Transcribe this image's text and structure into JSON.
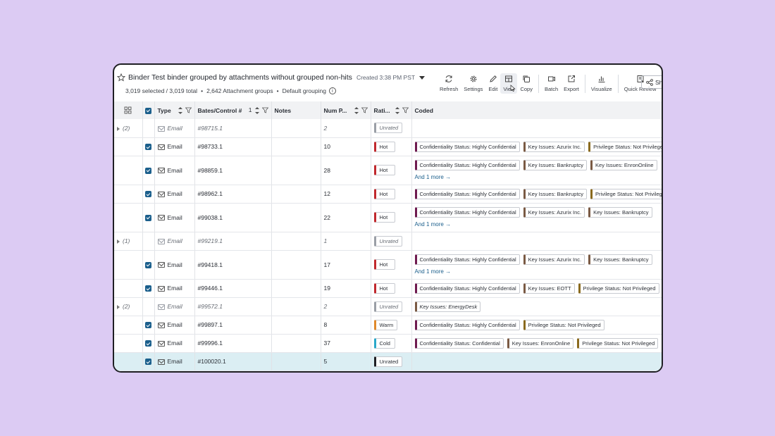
{
  "header": {
    "title": "Binder Test binder grouped by attachments without grouped non-hits",
    "created": "Created 3:38 PM PST",
    "selected": "3,019 selected / 3,019 total",
    "groups": "2,642 Attachment groups",
    "grouping": "Default grouping",
    "separator": "•"
  },
  "toolbar": {
    "refresh": "Refresh",
    "settings": "Settings",
    "edit": "Edit",
    "view": "View",
    "copy": "Copy",
    "batch": "Batch",
    "export": "Export",
    "visualize": "Visualize",
    "quick_review": "Quick Review",
    "share": "Sh"
  },
  "columns": {
    "type": "Type",
    "bates": "Bates/Control #",
    "bates_sort_rank": "1",
    "notes": "Notes",
    "num_pages": "Num P...",
    "rating": "Rati...",
    "coded": "Coded"
  },
  "colors": {
    "checkbox": "#1b5f8c",
    "hot": "#c0282d",
    "warm": "#e0892b",
    "cold": "#2aa8c9",
    "unrated": "#9a9ea6",
    "unrated_sel": "#1f1f24",
    "confidentiality": "#6e1a4f",
    "key_issues": "#7a5a44",
    "privilege": "#8a6a1e",
    "selected_row": "#dbeef3"
  },
  "rows": [
    {
      "kind": "group",
      "count": "(2)",
      "type": "Email",
      "bates": "#98715.1",
      "pages": "2",
      "rating": "Unrated",
      "tags": []
    },
    {
      "kind": "doc",
      "type": "Email",
      "bates": "#98733.1",
      "pages": "10",
      "rating": "Hot",
      "tags": [
        "Confidentiality Status: Highly Confidential",
        "Key Issues: Azurix Inc.",
        "Privilege Status: Not Privileged"
      ]
    },
    {
      "kind": "doc",
      "type": "Email",
      "bates": "#98859.1",
      "pages": "28",
      "rating": "Hot",
      "tags": [
        "Confidentiality Status: Highly Confidential",
        "Key Issues: Bankruptcy",
        "Key Issues: EnronOnline"
      ],
      "more": "And 1 more →"
    },
    {
      "kind": "doc",
      "type": "Email",
      "bates": "#98962.1",
      "pages": "12",
      "rating": "Hot",
      "tags": [
        "Confidentiality Status: Highly Confidential",
        "Key Issues: Bankruptcy",
        "Privilege Status: Not Privileged"
      ]
    },
    {
      "kind": "doc",
      "type": "Email",
      "bates": "#99038.1",
      "pages": "22",
      "rating": "Hot",
      "tags": [
        "Confidentiality Status: Highly Confidential",
        "Key Issues: Azurix Inc.",
        "Key Issues: Bankruptcy"
      ],
      "more": "And 1 more →"
    },
    {
      "kind": "group",
      "count": "(1)",
      "type": "Email",
      "bates": "#99219.1",
      "pages": "1",
      "rating": "Unrated",
      "tags": []
    },
    {
      "kind": "doc",
      "type": "Email",
      "bates": "#99418.1",
      "pages": "17",
      "rating": "Hot",
      "tags": [
        "Confidentiality Status: Highly Confidential",
        "Key Issues: Azurix Inc.",
        "Key Issues: Bankruptcy"
      ],
      "more": "And 1 more →"
    },
    {
      "kind": "doc",
      "type": "Email",
      "bates": "#99446.1",
      "pages": "19",
      "rating": "Hot",
      "tags": [
        "Confidentiality Status: Highly Confidential",
        "Key Issues: EOTT",
        "Privilege Status: Not Privileged"
      ]
    },
    {
      "kind": "group",
      "count": "(2)",
      "type": "Email",
      "bates": "#99572.1",
      "pages": "2",
      "rating": "Unrated",
      "tags": [
        "Key Issues: EnergyDesk"
      ]
    },
    {
      "kind": "doc",
      "type": "Email",
      "bates": "#99897.1",
      "pages": "8",
      "rating": "Warm",
      "tags": [
        "Confidentiality Status: Highly Confidential",
        "Privilege Status: Not Privileged"
      ]
    },
    {
      "kind": "doc",
      "type": "Email",
      "bates": "#99996.1",
      "pages": "37",
      "rating": "Cold",
      "tags": [
        "Confidentiality Status: Confidential",
        "Key Issues: EnronOnline",
        "Privilege Status: Not Privileged"
      ]
    },
    {
      "kind": "doc",
      "selected": true,
      "type": "Email",
      "bates": "#100020.1",
      "pages": "5",
      "rating": "Unrated",
      "tags": []
    }
  ]
}
